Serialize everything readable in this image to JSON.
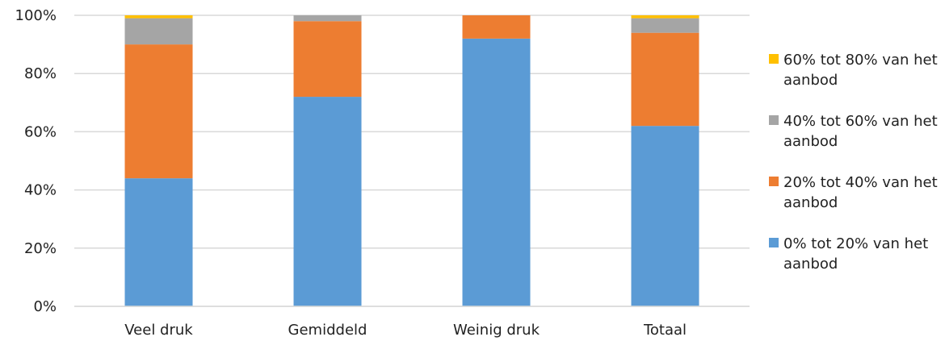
{
  "chart_data": {
    "type": "bar",
    "stacked": true,
    "normalized": true,
    "categories": [
      "Veel druk",
      "Gemiddeld",
      "Weinig druk",
      "Totaal"
    ],
    "series": [
      {
        "name": "0% tot 20% van het aanbod",
        "color": "#5B9BD5",
        "values": [
          44,
          72,
          92,
          62
        ]
      },
      {
        "name": "20% tot 40% van het aanbod",
        "color": "#ED7D31",
        "values": [
          46,
          26,
          8,
          32
        ]
      },
      {
        "name": "40% tot 60% van het aanbod",
        "color": "#A5A5A5",
        "values": [
          9,
          2,
          0,
          5
        ]
      },
      {
        "name": "60% tot 80% van het aanbod",
        "color": "#FFC000",
        "values": [
          1,
          0,
          0,
          1
        ]
      }
    ],
    "y_ticks": [
      "0%",
      "20%",
      "40%",
      "60%",
      "80%",
      "100%"
    ],
    "ylim": [
      0,
      100
    ],
    "grid": true,
    "legend_position": "right",
    "title": "",
    "xlabel": "",
    "ylabel": ""
  }
}
